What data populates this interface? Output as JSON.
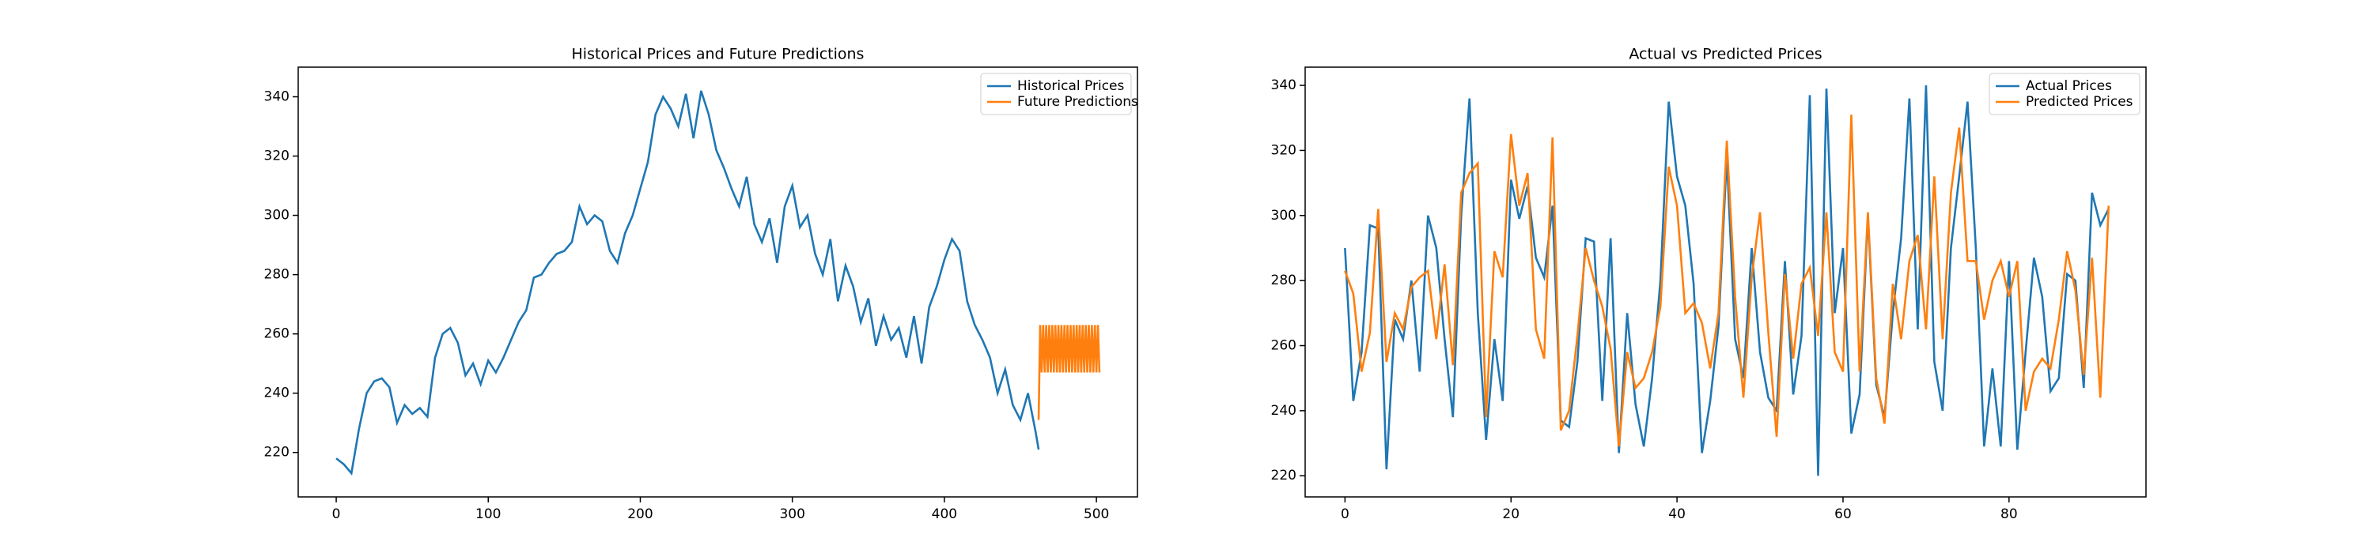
{
  "chart_data": [
    {
      "type": "line",
      "title": "Historical Prices and Future Predictions",
      "legend": "upper right",
      "xlim": [
        -25,
        527
      ],
      "ylim": [
        205,
        350
      ],
      "xticks": [
        0,
        100,
        200,
        300,
        400,
        500
      ],
      "yticks": [
        220,
        240,
        260,
        280,
        300,
        320,
        340
      ],
      "series": [
        {
          "name": "Historical Prices",
          "color": "#1f77b4",
          "x": [
            0,
            5,
            10,
            15,
            20,
            25,
            30,
            35,
            40,
            45,
            50,
            55,
            60,
            65,
            70,
            75,
            80,
            85,
            90,
            95,
            100,
            105,
            110,
            115,
            120,
            125,
            130,
            135,
            140,
            145,
            150,
            155,
            160,
            165,
            170,
            175,
            180,
            185,
            190,
            195,
            200,
            205,
            210,
            215,
            220,
            225,
            230,
            235,
            240,
            245,
            250,
            255,
            260,
            265,
            270,
            275,
            280,
            285,
            290,
            295,
            300,
            305,
            310,
            315,
            320,
            325,
            330,
            335,
            340,
            345,
            350,
            355,
            360,
            365,
            370,
            375,
            380,
            385,
            390,
            395,
            400,
            405,
            410,
            415,
            420,
            425,
            430,
            435,
            440,
            445,
            450,
            455,
            460,
            462
          ],
          "values": [
            218,
            216,
            213,
            228,
            240,
            244,
            245,
            242,
            230,
            236,
            233,
            235,
            232,
            252,
            260,
            262,
            257,
            246,
            250,
            243,
            251,
            247,
            252,
            258,
            264,
            268,
            279,
            280,
            284,
            287,
            288,
            291,
            303,
            297,
            300,
            298,
            288,
            284,
            294,
            300,
            309,
            318,
            334,
            340,
            336,
            330,
            341,
            326,
            342,
            334,
            322,
            316,
            309,
            303,
            313,
            297,
            291,
            299,
            284,
            303,
            310,
            296,
            300,
            287,
            280,
            292,
            271,
            283,
            276,
            264,
            272,
            256,
            266,
            258,
            262,
            252,
            266,
            250,
            269,
            276,
            285,
            292,
            288,
            271,
            263,
            258,
            252,
            240,
            248,
            236,
            231,
            240,
            227,
            221
          ]
        },
        {
          "name": "Future Predictions",
          "color": "#ff7f0e",
          "x": [
            462,
            463,
            464,
            465,
            466,
            467,
            468,
            469,
            470,
            471,
            472,
            473,
            474,
            475,
            476,
            477,
            478,
            479,
            480,
            481,
            482,
            483,
            484,
            485,
            486,
            487,
            488,
            489,
            490,
            491,
            492,
            493,
            494,
            495,
            496,
            497,
            498,
            499,
            500,
            501,
            502
          ],
          "values": [
            231,
            263,
            247,
            263,
            247,
            263,
            247,
            263,
            247,
            263,
            247,
            263,
            247,
            263,
            247,
            263,
            247,
            263,
            247,
            263,
            247,
            263,
            247,
            263,
            247,
            263,
            247,
            263,
            247,
            263,
            247,
            263,
            247,
            263,
            247,
            263,
            247,
            263,
            247,
            263,
            247
          ]
        }
      ]
    },
    {
      "type": "line",
      "title": "Actual vs Predicted Prices",
      "legend": "upper right",
      "xlim": [
        -4.8,
        96.5
      ],
      "ylim": [
        213.5,
        345.6
      ],
      "xticks": [
        0,
        20,
        40,
        60,
        80
      ],
      "yticks": [
        220,
        240,
        260,
        280,
        300,
        320,
        340
      ],
      "series": [
        {
          "name": "Actual Prices",
          "color": "#1f77b4",
          "x": [
            0,
            1,
            2,
            3,
            4,
            5,
            6,
            7,
            8,
            9,
            10,
            11,
            12,
            13,
            14,
            15,
            16,
            17,
            18,
            19,
            20,
            21,
            22,
            23,
            24,
            25,
            26,
            27,
            28,
            29,
            30,
            31,
            32,
            33,
            34,
            35,
            36,
            37,
            38,
            39,
            40,
            41,
            42,
            43,
            44,
            45,
            46,
            47,
            48,
            49,
            50,
            51,
            52,
            53,
            54,
            55,
            56,
            57,
            58,
            59,
            60,
            61,
            62,
            63,
            64,
            65,
            66,
            67,
            68,
            69,
            70,
            71,
            72,
            73,
            74,
            75,
            76,
            77,
            78,
            79,
            80,
            81,
            82,
            83,
            84,
            85,
            86,
            87,
            88,
            89,
            90,
            91,
            92
          ],
          "values": [
            290,
            243,
            258,
            297,
            296,
            222,
            268,
            262,
            280,
            252,
            300,
            290,
            262,
            238,
            300,
            336,
            270,
            231,
            262,
            243,
            311,
            299,
            309,
            287,
            281,
            303,
            237,
            235,
            255,
            293,
            292,
            243,
            293,
            227,
            270,
            242,
            229,
            250,
            280,
            335,
            312,
            303,
            279,
            227,
            243,
            266,
            318,
            262,
            250,
            290,
            258,
            244,
            240,
            286,
            245,
            263,
            337,
            220,
            339,
            270,
            290,
            233,
            245,
            300,
            248,
            238,
            270,
            293,
            336,
            265,
            340,
            255,
            240,
            290,
            312,
            335,
            290,
            229,
            253,
            229,
            286,
            228,
            258,
            287,
            275,
            246,
            250,
            282,
            280,
            247,
            307,
            297,
            302
          ]
        },
        {
          "name": "Predicted Prices",
          "color": "#ff7f0e",
          "x": [
            0,
            1,
            2,
            3,
            4,
            5,
            6,
            7,
            8,
            9,
            10,
            11,
            12,
            13,
            14,
            15,
            16,
            17,
            18,
            19,
            20,
            21,
            22,
            23,
            24,
            25,
            26,
            27,
            28,
            29,
            30,
            31,
            32,
            33,
            34,
            35,
            36,
            37,
            38,
            39,
            40,
            41,
            42,
            43,
            44,
            45,
            46,
            47,
            48,
            49,
            50,
            51,
            52,
            53,
            54,
            55,
            56,
            57,
            58,
            59,
            60,
            61,
            62,
            63,
            64,
            65,
            66,
            67,
            68,
            69,
            70,
            71,
            72,
            73,
            74,
            75,
            76,
            77,
            78,
            79,
            80,
            81,
            82,
            83,
            84,
            85,
            86,
            87,
            88,
            89,
            90,
            91,
            92
          ],
          "values": [
            283,
            276,
            252,
            264,
            302,
            255,
            270,
            265,
            278,
            281,
            283,
            262,
            285,
            254,
            307,
            313,
            316,
            238,
            289,
            281,
            325,
            303,
            313,
            265,
            256,
            324,
            234,
            240,
            263,
            290,
            280,
            272,
            259,
            229,
            258,
            247,
            250,
            258,
            272,
            315,
            303,
            270,
            273,
            267,
            253,
            270,
            323,
            275,
            244,
            281,
            301,
            264,
            232,
            282,
            256,
            279,
            284,
            263,
            301,
            258,
            252,
            331,
            252,
            301,
            250,
            236,
            279,
            262,
            286,
            294,
            265,
            312,
            262,
            307,
            327,
            286,
            286,
            268,
            280,
            286,
            275,
            286,
            240,
            252,
            256,
            253,
            268,
            289,
            277,
            251,
            287,
            244,
            303
          ]
        }
      ]
    }
  ]
}
